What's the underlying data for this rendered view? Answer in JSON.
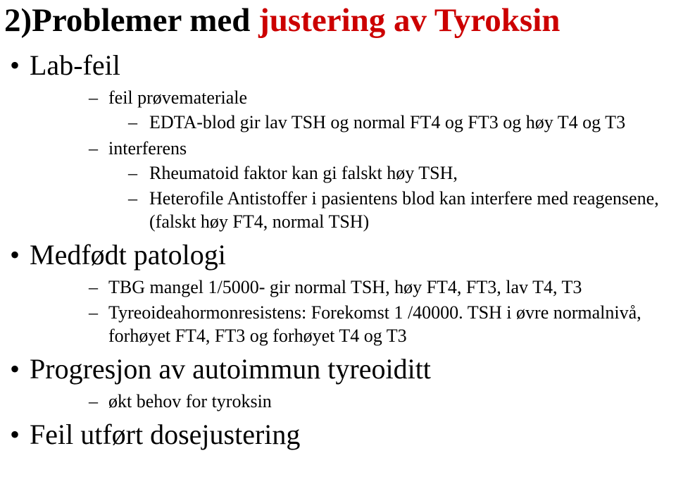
{
  "title": {
    "black": "2)Problemer med ",
    "red": "justering av Tyroksin"
  },
  "items": [
    {
      "label": "Lab-feil",
      "sub": [
        {
          "label": "feil prøvemateriale",
          "sub": [
            {
              "label": "EDTA-blod gir lav TSH og normal FT4 og FT3 og høy T4 og T3"
            }
          ]
        },
        {
          "label": "interferens",
          "sub": [
            {
              "label": "Rheumatoid faktor kan gi falskt høy TSH,"
            },
            {
              "label": "Heterofile Antistoffer i pasientens blod kan interfere med reagensene, (falskt høy FT4, normal TSH)"
            }
          ]
        }
      ]
    },
    {
      "label": "Medfødt patologi",
      "sub": [
        {
          "label": "TBG mangel 1/5000- gir normal TSH, høy FT4, FT3, lav T4, T3"
        },
        {
          "label": "Tyreoideahormonresistens: Forekomst 1 /40000. TSH i  øvre normalnivå, forhøyet FT4, FT3 og forhøyet  T4 og T3"
        }
      ]
    },
    {
      "label": "Progresjon av  autoimmun tyreoiditt",
      "sub": [
        {
          "label": "økt behov for tyroksin"
        }
      ]
    },
    {
      "label": "Feil utført dosejustering"
    }
  ]
}
